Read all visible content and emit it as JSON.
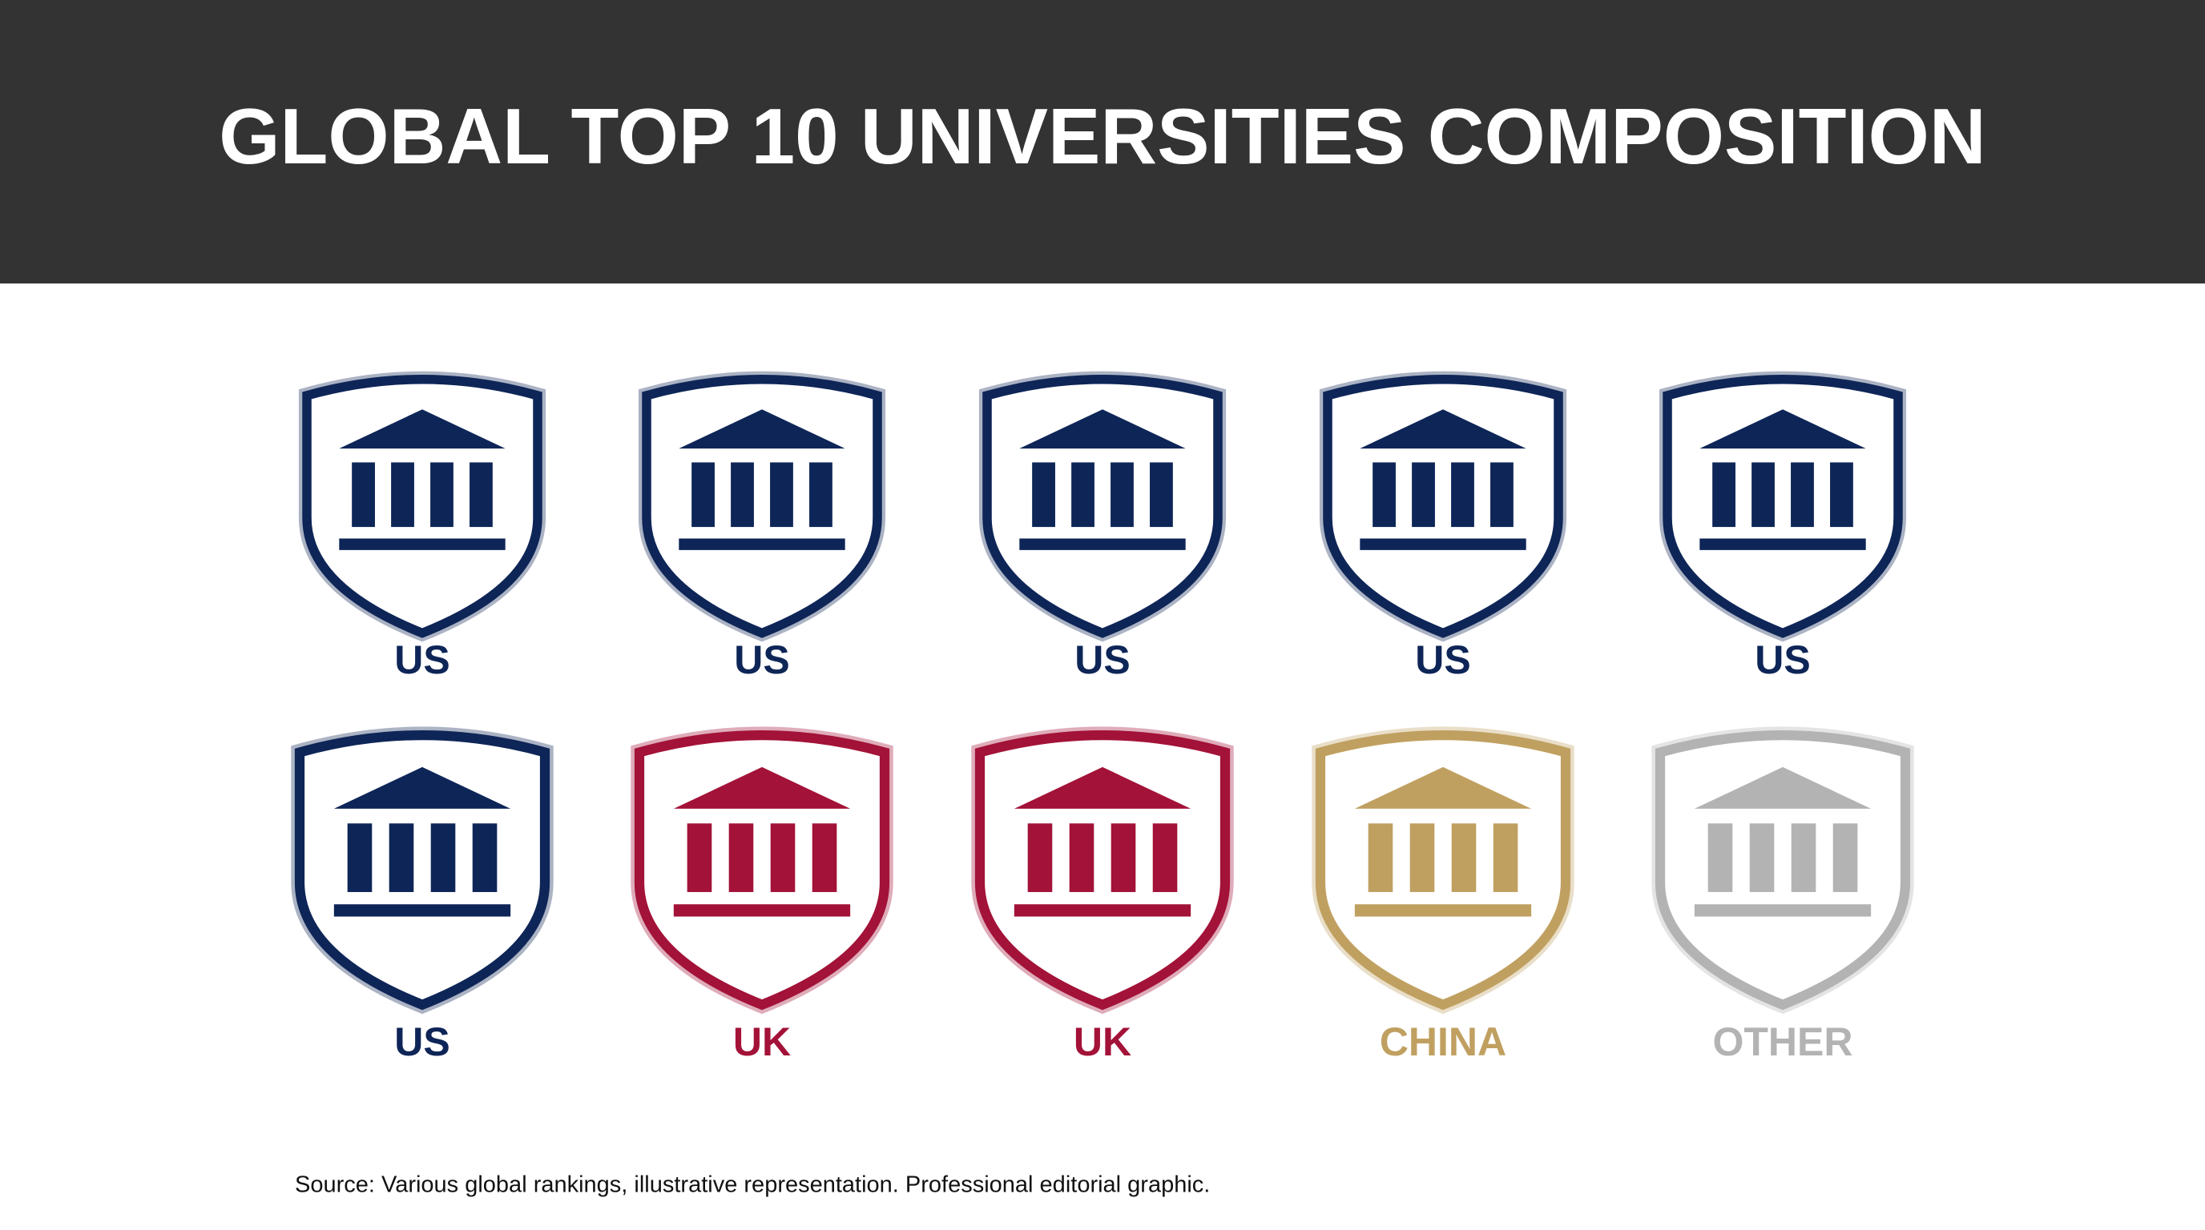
{
  "title": "GLOBAL TOP 10 UNIVERSITIES COMPOSITION",
  "icons": [
    {
      "label": "US",
      "color": "#0e2557"
    },
    {
      "label": "US",
      "color": "#0e2557"
    },
    {
      "label": "US",
      "color": "#0e2557"
    },
    {
      "label": "US",
      "color": "#0e2557"
    },
    {
      "label": "US",
      "color": "#0e2557"
    },
    {
      "label": "US",
      "color": "#0e2557"
    },
    {
      "label": "UK",
      "color": "#a31238"
    },
    {
      "label": "UK",
      "color": "#a31238"
    },
    {
      "label": "CHINA",
      "color": "#c0a060"
    },
    {
      "label": "OTHER",
      "color": "#b3b3b3"
    }
  ],
  "source": "Source: Various global rankings, illustrative representation. Professional editorial graphic."
}
